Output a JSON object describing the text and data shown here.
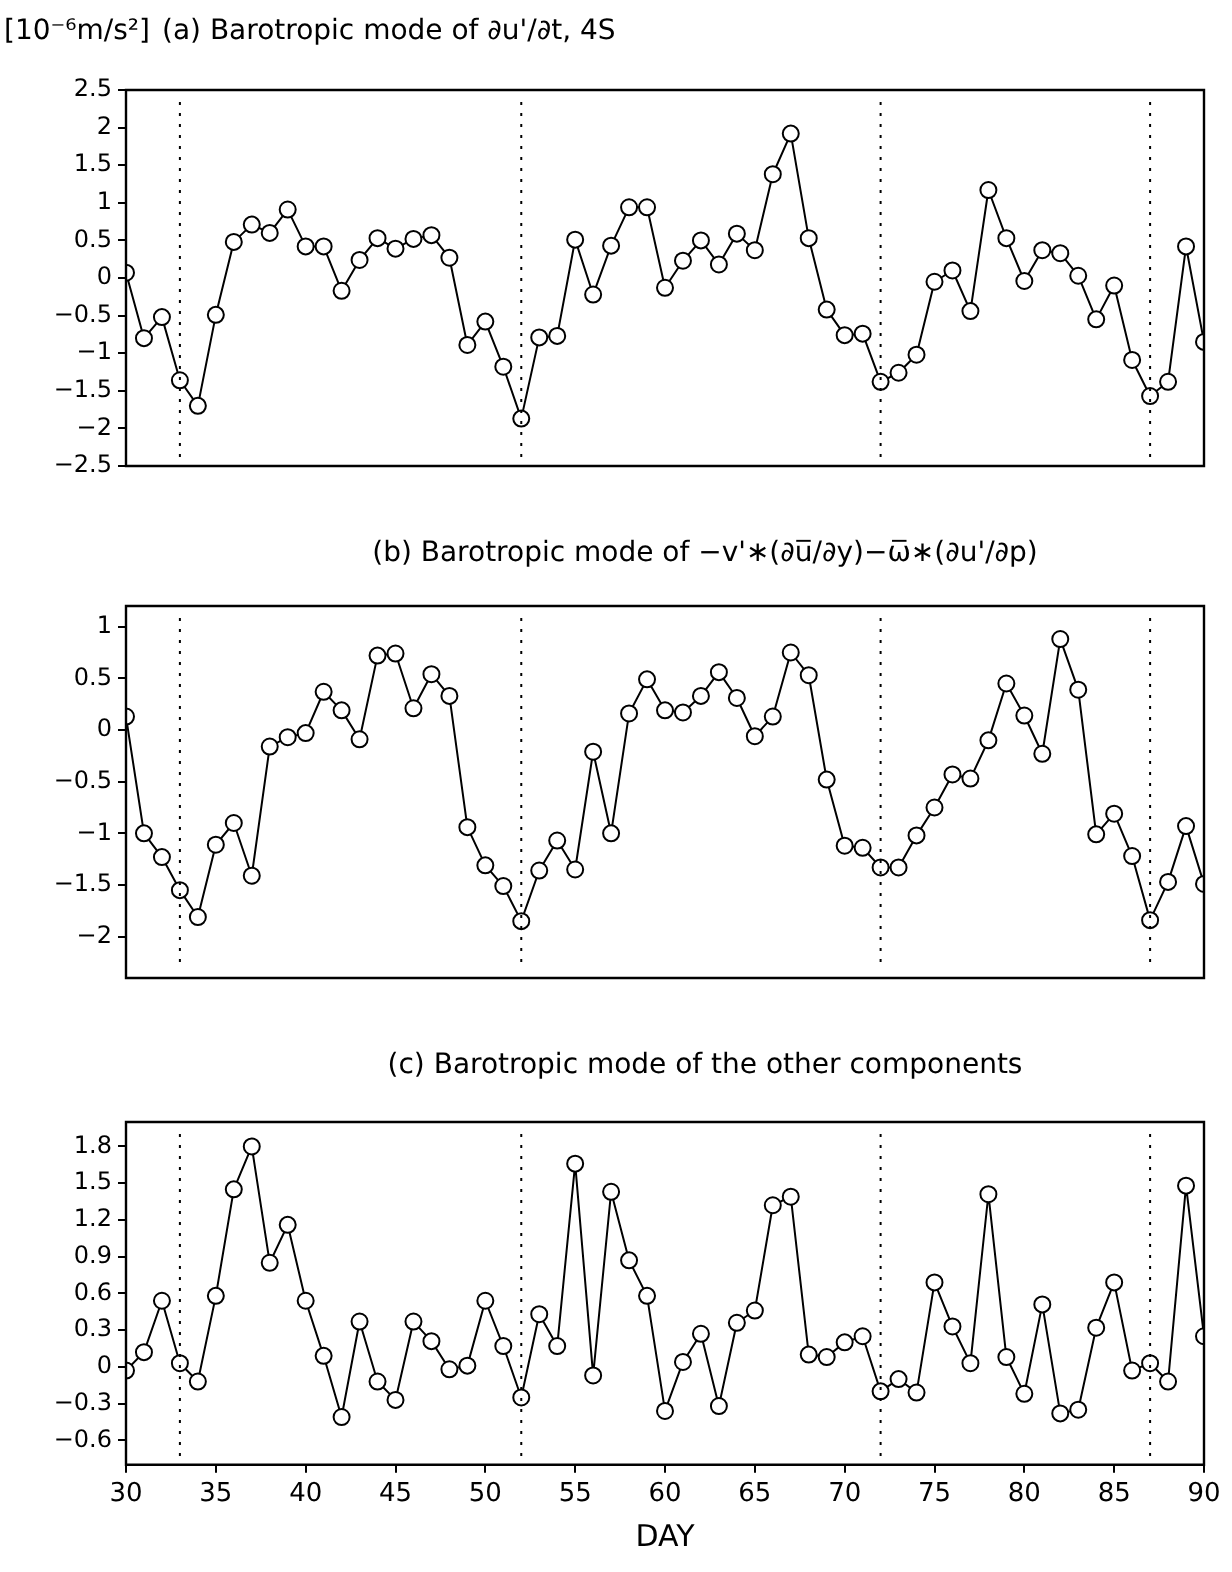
{
  "chart_data": [
    {
      "type": "line",
      "ylabel": "[10⁻⁶m/s²]",
      "title": "(a) Barotropic mode of ∂u'/∂t, 4S",
      "marker": "circle",
      "grid": false,
      "tick_labels": "y",
      "xlim": [
        30,
        90
      ],
      "ylim": [
        -2.5,
        2.5
      ],
      "yticks": [
        -2.5,
        -2,
        -1.5,
        -1,
        -0.5,
        0,
        0.5,
        1,
        1.5,
        2,
        2.5
      ],
      "x": [
        30,
        31,
        32,
        33,
        34,
        35,
        36,
        37,
        38,
        39,
        40,
        41,
        42,
        43,
        44,
        45,
        46,
        47,
        48,
        49,
        50,
        51,
        52,
        53,
        54,
        55,
        56,
        57,
        58,
        59,
        60,
        61,
        62,
        63,
        64,
        65,
        66,
        67,
        68,
        69,
        70,
        71,
        72,
        73,
        74,
        75,
        76,
        77,
        78,
        79,
        80,
        81,
        82,
        83,
        84,
        85,
        86,
        87,
        88,
        89,
        90
      ],
      "series": [
        {
          "color": "#000000",
          "values": [
            0.07,
            -0.8,
            -0.52,
            -1.36,
            -1.7,
            -0.49,
            0.48,
            0.71,
            0.6,
            0.91,
            0.42,
            0.42,
            -0.17,
            0.24,
            0.53,
            0.39,
            0.52,
            0.57,
            0.27,
            -0.89,
            -0.58,
            -1.18,
            -1.87,
            -0.79,
            -0.77,
            0.51,
            -0.22,
            0.43,
            0.94,
            0.94,
            -0.13,
            0.23,
            0.5,
            0.18,
            0.59,
            0.37,
            1.38,
            1.92,
            0.53,
            -0.42,
            -0.76,
            -0.74,
            -1.38,
            -1.26,
            -1.02,
            -0.05,
            0.1,
            -0.44,
            1.17,
            0.53,
            -0.04,
            0.37,
            0.33,
            0.03,
            -0.55,
            -0.1,
            -1.09,
            -1.57,
            -1.38,
            0.42,
            -0.85
          ]
        }
      ],
      "ref_lines": [
        {
          "axis": "x",
          "value": 33,
          "line_style": "dotted"
        },
        {
          "axis": "x",
          "value": 52,
          "line_style": "dotted"
        },
        {
          "axis": "x",
          "value": 72,
          "line_style": "dotted"
        },
        {
          "axis": "x",
          "value": 87,
          "line_style": "dotted"
        }
      ]
    },
    {
      "type": "line",
      "title": "(b) Barotropic mode of −v'∗(∂u̅/∂y)−ω̅∗(∂u'/∂p)",
      "marker": "circle",
      "grid": false,
      "tick_labels": "y",
      "xlim": [
        30,
        90
      ],
      "ylim": [
        -2.4,
        1.2
      ],
      "yticks": [
        -2,
        -1.5,
        -1,
        -0.5,
        0,
        0.5,
        1
      ],
      "x": [
        30,
        31,
        32,
        33,
        34,
        35,
        36,
        37,
        38,
        39,
        40,
        41,
        42,
        43,
        44,
        45,
        46,
        47,
        48,
        49,
        50,
        51,
        52,
        53,
        54,
        55,
        56,
        57,
        58,
        59,
        60,
        61,
        62,
        63,
        64,
        65,
        66,
        67,
        68,
        69,
        70,
        71,
        72,
        73,
        74,
        75,
        76,
        77,
        78,
        79,
        80,
        81,
        82,
        83,
        84,
        85,
        86,
        87,
        88,
        89,
        90
      ],
      "series": [
        {
          "color": "#000000",
          "values": [
            0.13,
            -1.0,
            -1.23,
            -1.55,
            -1.81,
            -1.11,
            -0.9,
            -1.41,
            -0.16,
            -0.07,
            -0.03,
            0.37,
            0.19,
            -0.09,
            0.72,
            0.74,
            0.21,
            0.54,
            0.33,
            -0.94,
            -1.31,
            -1.51,
            -1.85,
            -1.36,
            -1.07,
            -1.35,
            -0.21,
            -1.0,
            0.16,
            0.49,
            0.19,
            0.17,
            0.33,
            0.56,
            0.31,
            -0.06,
            0.13,
            0.75,
            0.53,
            -0.48,
            -1.12,
            -1.14,
            -1.33,
            -1.33,
            -1.02,
            -0.75,
            -0.43,
            -0.47,
            -0.1,
            0.45,
            0.14,
            -0.23,
            0.88,
            0.39,
            -1.01,
            -0.81,
            -1.22,
            -1.84,
            -1.47,
            -0.93,
            -1.49
          ]
        }
      ],
      "ref_lines": [
        {
          "axis": "x",
          "value": 33,
          "line_style": "dotted"
        },
        {
          "axis": "x",
          "value": 52,
          "line_style": "dotted"
        },
        {
          "axis": "x",
          "value": 72,
          "line_style": "dotted"
        },
        {
          "axis": "x",
          "value": 87,
          "line_style": "dotted"
        }
      ]
    },
    {
      "type": "line",
      "title": "(c) Barotropic mode of the other components",
      "xlabel": "DAY",
      "marker": "circle",
      "grid": false,
      "xlim": [
        30,
        90
      ],
      "xticks": [
        30,
        35,
        40,
        45,
        50,
        55,
        60,
        65,
        70,
        75,
        80,
        85,
        90
      ],
      "ylim": [
        -0.8,
        2.0
      ],
      "yticks": [
        -0.6,
        -0.3,
        0,
        0.3,
        0.6,
        0.9,
        1.2,
        1.5,
        1.8
      ],
      "x": [
        30,
        31,
        32,
        33,
        34,
        35,
        36,
        37,
        38,
        39,
        40,
        41,
        42,
        43,
        44,
        45,
        46,
        47,
        48,
        49,
        50,
        51,
        52,
        53,
        54,
        55,
        56,
        57,
        58,
        59,
        60,
        61,
        62,
        63,
        64,
        65,
        66,
        67,
        68,
        69,
        70,
        71,
        72,
        73,
        74,
        75,
        76,
        77,
        78,
        79,
        80,
        81,
        82,
        83,
        84,
        85,
        86,
        87,
        88,
        89,
        90
      ],
      "series": [
        {
          "color": "#000000",
          "values": [
            -0.03,
            0.12,
            0.54,
            0.03,
            -0.12,
            0.58,
            1.45,
            1.8,
            0.85,
            1.16,
            0.54,
            0.09,
            -0.41,
            0.37,
            -0.12,
            -0.27,
            0.37,
            0.21,
            -0.02,
            0.01,
            0.54,
            0.17,
            -0.25,
            0.43,
            0.17,
            1.66,
            -0.07,
            1.43,
            0.87,
            0.58,
            -0.36,
            0.04,
            0.27,
            -0.32,
            0.36,
            0.46,
            1.32,
            1.39,
            0.1,
            0.08,
            0.2,
            0.25,
            -0.2,
            -0.1,
            -0.21,
            0.69,
            0.33,
            0.03,
            1.41,
            0.08,
            -0.22,
            0.51,
            -0.38,
            -0.35,
            0.32,
            0.69,
            -0.03,
            0.03,
            -0.12,
            1.48,
            0.25
          ]
        }
      ],
      "ref_lines": [
        {
          "axis": "x",
          "value": 33,
          "line_style": "dotted"
        },
        {
          "axis": "x",
          "value": 52,
          "line_style": "dotted"
        },
        {
          "axis": "x",
          "value": 72,
          "line_style": "dotted"
        },
        {
          "axis": "x",
          "value": 87,
          "line_style": "dotted"
        }
      ]
    }
  ]
}
